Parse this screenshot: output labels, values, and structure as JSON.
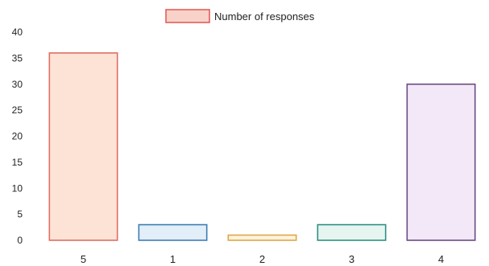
{
  "chart_data": {
    "type": "bar",
    "categories": [
      "5",
      "1",
      "2",
      "3",
      "4"
    ],
    "series": [
      {
        "name": "Number of responses",
        "values": [
          36,
          3,
          1,
          3,
          30
        ]
      }
    ],
    "legend": {
      "label": "Number of responses",
      "placement": "top-center",
      "swatch_fill": "#f8d2c9",
      "swatch_border": "#e0564e"
    },
    "ylim": [
      0,
      40
    ],
    "yticks": [
      0,
      5,
      10,
      15,
      20,
      25,
      30,
      35,
      40
    ],
    "grid": false,
    "bar_styles": [
      {
        "fill": "#fde3d6",
        "border": "#df6e63"
      },
      {
        "fill": "#e2eef8",
        "border": "#3d7fb5"
      },
      {
        "fill": "#fff3da",
        "border": "#e0a54d"
      },
      {
        "fill": "#e6f5f0",
        "border": "#2f8f85"
      },
      {
        "fill": "#f3e8f7",
        "border": "#6c4b86"
      }
    ]
  }
}
